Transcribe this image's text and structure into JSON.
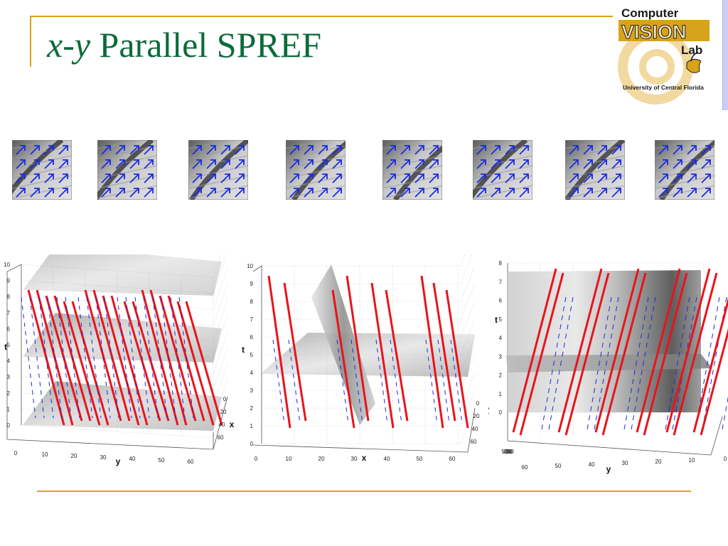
{
  "slide": {
    "title_var": "x-y",
    "title_text": " Parallel SPREF"
  },
  "logo": {
    "line1": "Computer",
    "line2": "VISION",
    "line3": "Lab",
    "line4": "University of Central Florida"
  },
  "thumbnails": {
    "count": 8,
    "arrow_color": "#1a2be0"
  },
  "plots": [
    {
      "name": "plot-left",
      "t_ticks": [
        "0",
        "1",
        "2",
        "3",
        "4",
        "5",
        "6",
        "7",
        "8",
        "9",
        "10"
      ],
      "t_label": "t",
      "y_ticks": [
        "0",
        "10",
        "20",
        "30",
        "40",
        "50",
        "60"
      ],
      "y_label": "y",
      "x_ticks": [
        "0",
        "20",
        "40",
        "60"
      ],
      "x_label": "x"
    },
    {
      "name": "plot-middle",
      "t_ticks": [
        "0",
        "1",
        "2",
        "3",
        "4",
        "5",
        "6",
        "7",
        "8",
        "9",
        "10"
      ],
      "t_label": "t",
      "x_ticks": [
        "0",
        "10",
        "20",
        "30",
        "40",
        "50",
        "60"
      ],
      "x_label": "x",
      "y_ticks": [
        "0",
        "20",
        "40",
        "60"
      ],
      "y_label": "y"
    },
    {
      "name": "plot-right",
      "t_ticks": [
        "0",
        "1",
        "2",
        "3",
        "4",
        "5",
        "6",
        "7",
        "8"
      ],
      "t_label": "t",
      "y_ticks": [
        "60",
        "50",
        "40",
        "30",
        "20",
        "10",
        "0"
      ],
      "y_label": "y",
      "x_ticks": [
        "50",
        "40",
        "30",
        "20",
        "10",
        "0"
      ],
      "x_label": ""
    }
  ],
  "colors": {
    "title_green": "#0b6b3a",
    "accent_gold": "#d9a21b",
    "stroke_red": "#e8141b",
    "dash_blue": "#1a2be0"
  }
}
